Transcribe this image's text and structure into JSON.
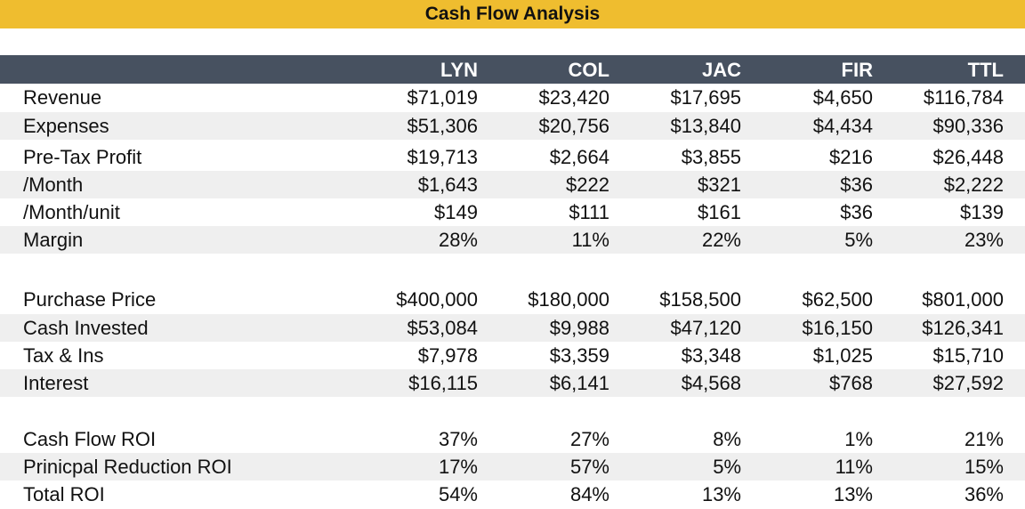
{
  "title": "Cash Flow Analysis",
  "columns": [
    "LYN",
    "COL",
    "JAC",
    "FIR",
    "TTL"
  ],
  "sections": [
    {
      "rows": [
        {
          "label": "Revenue",
          "values": [
            "$71,019",
            "$23,420",
            "$17,695",
            "$4,650",
            "$116,784"
          ]
        },
        {
          "label": "Expenses",
          "values": [
            "$51,306",
            "$20,756",
            "$13,840",
            "$4,434",
            "$90,336"
          ]
        },
        {
          "label": "Pre-Tax Profit",
          "values": [
            "$19,713",
            "$2,664",
            "$3,855",
            "$216",
            "$26,448"
          ]
        },
        {
          "label": "/Month",
          "values": [
            "$1,643",
            "$222",
            "$321",
            "$36",
            "$2,222"
          ]
        },
        {
          "label": "/Month/unit",
          "values": [
            "$149",
            "$111",
            "$161",
            "$36",
            "$139"
          ]
        },
        {
          "label": "Margin",
          "values": [
            "28%",
            "11%",
            "22%",
            "5%",
            "23%"
          ]
        }
      ]
    },
    {
      "rows": [
        {
          "label": "Purchase Price",
          "values": [
            "$400,000",
            "$180,000",
            "$158,500",
            "$62,500",
            "$801,000"
          ]
        },
        {
          "label": "Cash Invested",
          "values": [
            "$53,084",
            "$9,988",
            "$47,120",
            "$16,150",
            "$126,341"
          ]
        },
        {
          "label": "Tax & Ins",
          "values": [
            "$7,978",
            "$3,359",
            "$3,348",
            "$1,025",
            "$15,710"
          ]
        },
        {
          "label": "Interest",
          "values": [
            "$16,115",
            "$6,141",
            "$4,568",
            "$768",
            "$27,592"
          ]
        }
      ]
    },
    {
      "rows": [
        {
          "label": "Cash Flow ROI",
          "values": [
            "37%",
            "27%",
            "8%",
            "1%",
            "21%"
          ]
        },
        {
          "label": "Prinicpal Reduction ROI",
          "values": [
            "17%",
            "57%",
            "5%",
            "11%",
            "15%"
          ]
        },
        {
          "label": "Total ROI",
          "values": [
            "54%",
            "84%",
            "13%",
            "13%",
            "36%"
          ]
        }
      ]
    }
  ],
  "colors": {
    "title_bg": "#efbd2f",
    "header_bg": "#475160",
    "stripe_bg": "#efefef"
  }
}
